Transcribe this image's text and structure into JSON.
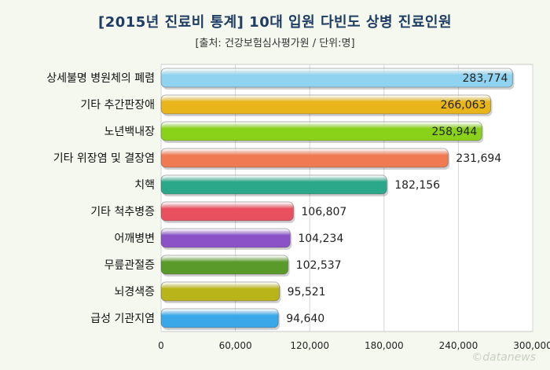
{
  "title": "[2015년 진료비 통계] 10대 입원 다빈도 상병 진료인원",
  "subtitle": "[출처: 건강보험심사평가원 / 단위:명]",
  "watermark": "©datanews",
  "chart_data": {
    "type": "bar",
    "orientation": "horizontal",
    "categories": [
      "상세불명 병원체의 폐렴",
      "기타 추간판장애",
      "노년백내장",
      "기타 위장염 및 결장염",
      "치핵",
      "기타 척추병증",
      "어깨병변",
      "무릎관절증",
      "뇌경색증",
      "급성 기관지염"
    ],
    "values": [
      283774,
      266063,
      258944,
      231694,
      182156,
      106807,
      104234,
      102537,
      95521,
      94640
    ],
    "value_labels": [
      "283,774",
      "266,063",
      "258,944",
      "231,694",
      "182,156",
      "106,807",
      "104,234",
      "102,537",
      "95,521",
      "94,640"
    ],
    "xlim": [
      0,
      300000
    ],
    "xticks": [
      0,
      60000,
      120000,
      180000,
      240000,
      300000
    ],
    "xtick_labels": [
      "0",
      "60,000",
      "120,000",
      "180,000",
      "240,000",
      "300,000"
    ],
    "colors": [
      "#8fd3f0",
      "#e8b51a",
      "#8ad21a",
      "#f07a52",
      "#2aa889",
      "#e8505f",
      "#8b52c8",
      "#5a9a2a",
      "#b8b41a",
      "#3aa8e8"
    ],
    "grid": true,
    "legend": "none"
  }
}
